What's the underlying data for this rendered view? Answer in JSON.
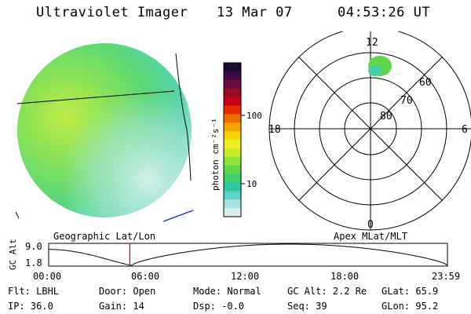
{
  "header": {
    "instrument": "Ultraviolet Imager",
    "date": "13 Mar 07",
    "time": "04:53:26 UT"
  },
  "colorbar": {
    "unit_label": "photon cm⁻²s⁻¹",
    "ticks": [
      "100",
      "10"
    ],
    "colors": [
      "#1a0a2e",
      "#3b0a45",
      "#6a0d3a",
      "#9a0a20",
      "#c8001a",
      "#e62b00",
      "#f26a00",
      "#f7a300",
      "#f5d200",
      "#f0ef20",
      "#c8ec2a",
      "#8fe33a",
      "#5fd84a",
      "#3fcf6a",
      "#2ec8a0",
      "#5cd4c8",
      "#a6e2e0",
      "#d8efee"
    ]
  },
  "polar_plot": {
    "mlt_labels": {
      "top": "12",
      "left": "18",
      "right": "6",
      "bottom": "0"
    },
    "lat_labels": [
      "60",
      "70",
      "80"
    ]
  },
  "timeline": {
    "axis_label": "GC Alt",
    "y_ticks": [
      "9.0",
      "1.8"
    ],
    "left_title": "Geographic Lat/Lon",
    "right_title": "Apex MLat/MLT",
    "x_ticks": [
      "00:00",
      "06:00",
      "12:00",
      "18:00",
      "23:59"
    ],
    "cursor_time": "04:53",
    "cursor_color": "#cc0000"
  },
  "info": {
    "flt": "Flt: LBHL",
    "ip": "IP: 36.0",
    "door": "Door: Open",
    "gain": "Gain: 14",
    "mode": "Mode: Normal",
    "dsp": "Dsp:   -0.0",
    "gc_alt": "GC Alt: 2.2 Re",
    "seq": "Seq: 39",
    "glat": "GLat:  65.9",
    "glon": "GLon:  95.2"
  }
}
